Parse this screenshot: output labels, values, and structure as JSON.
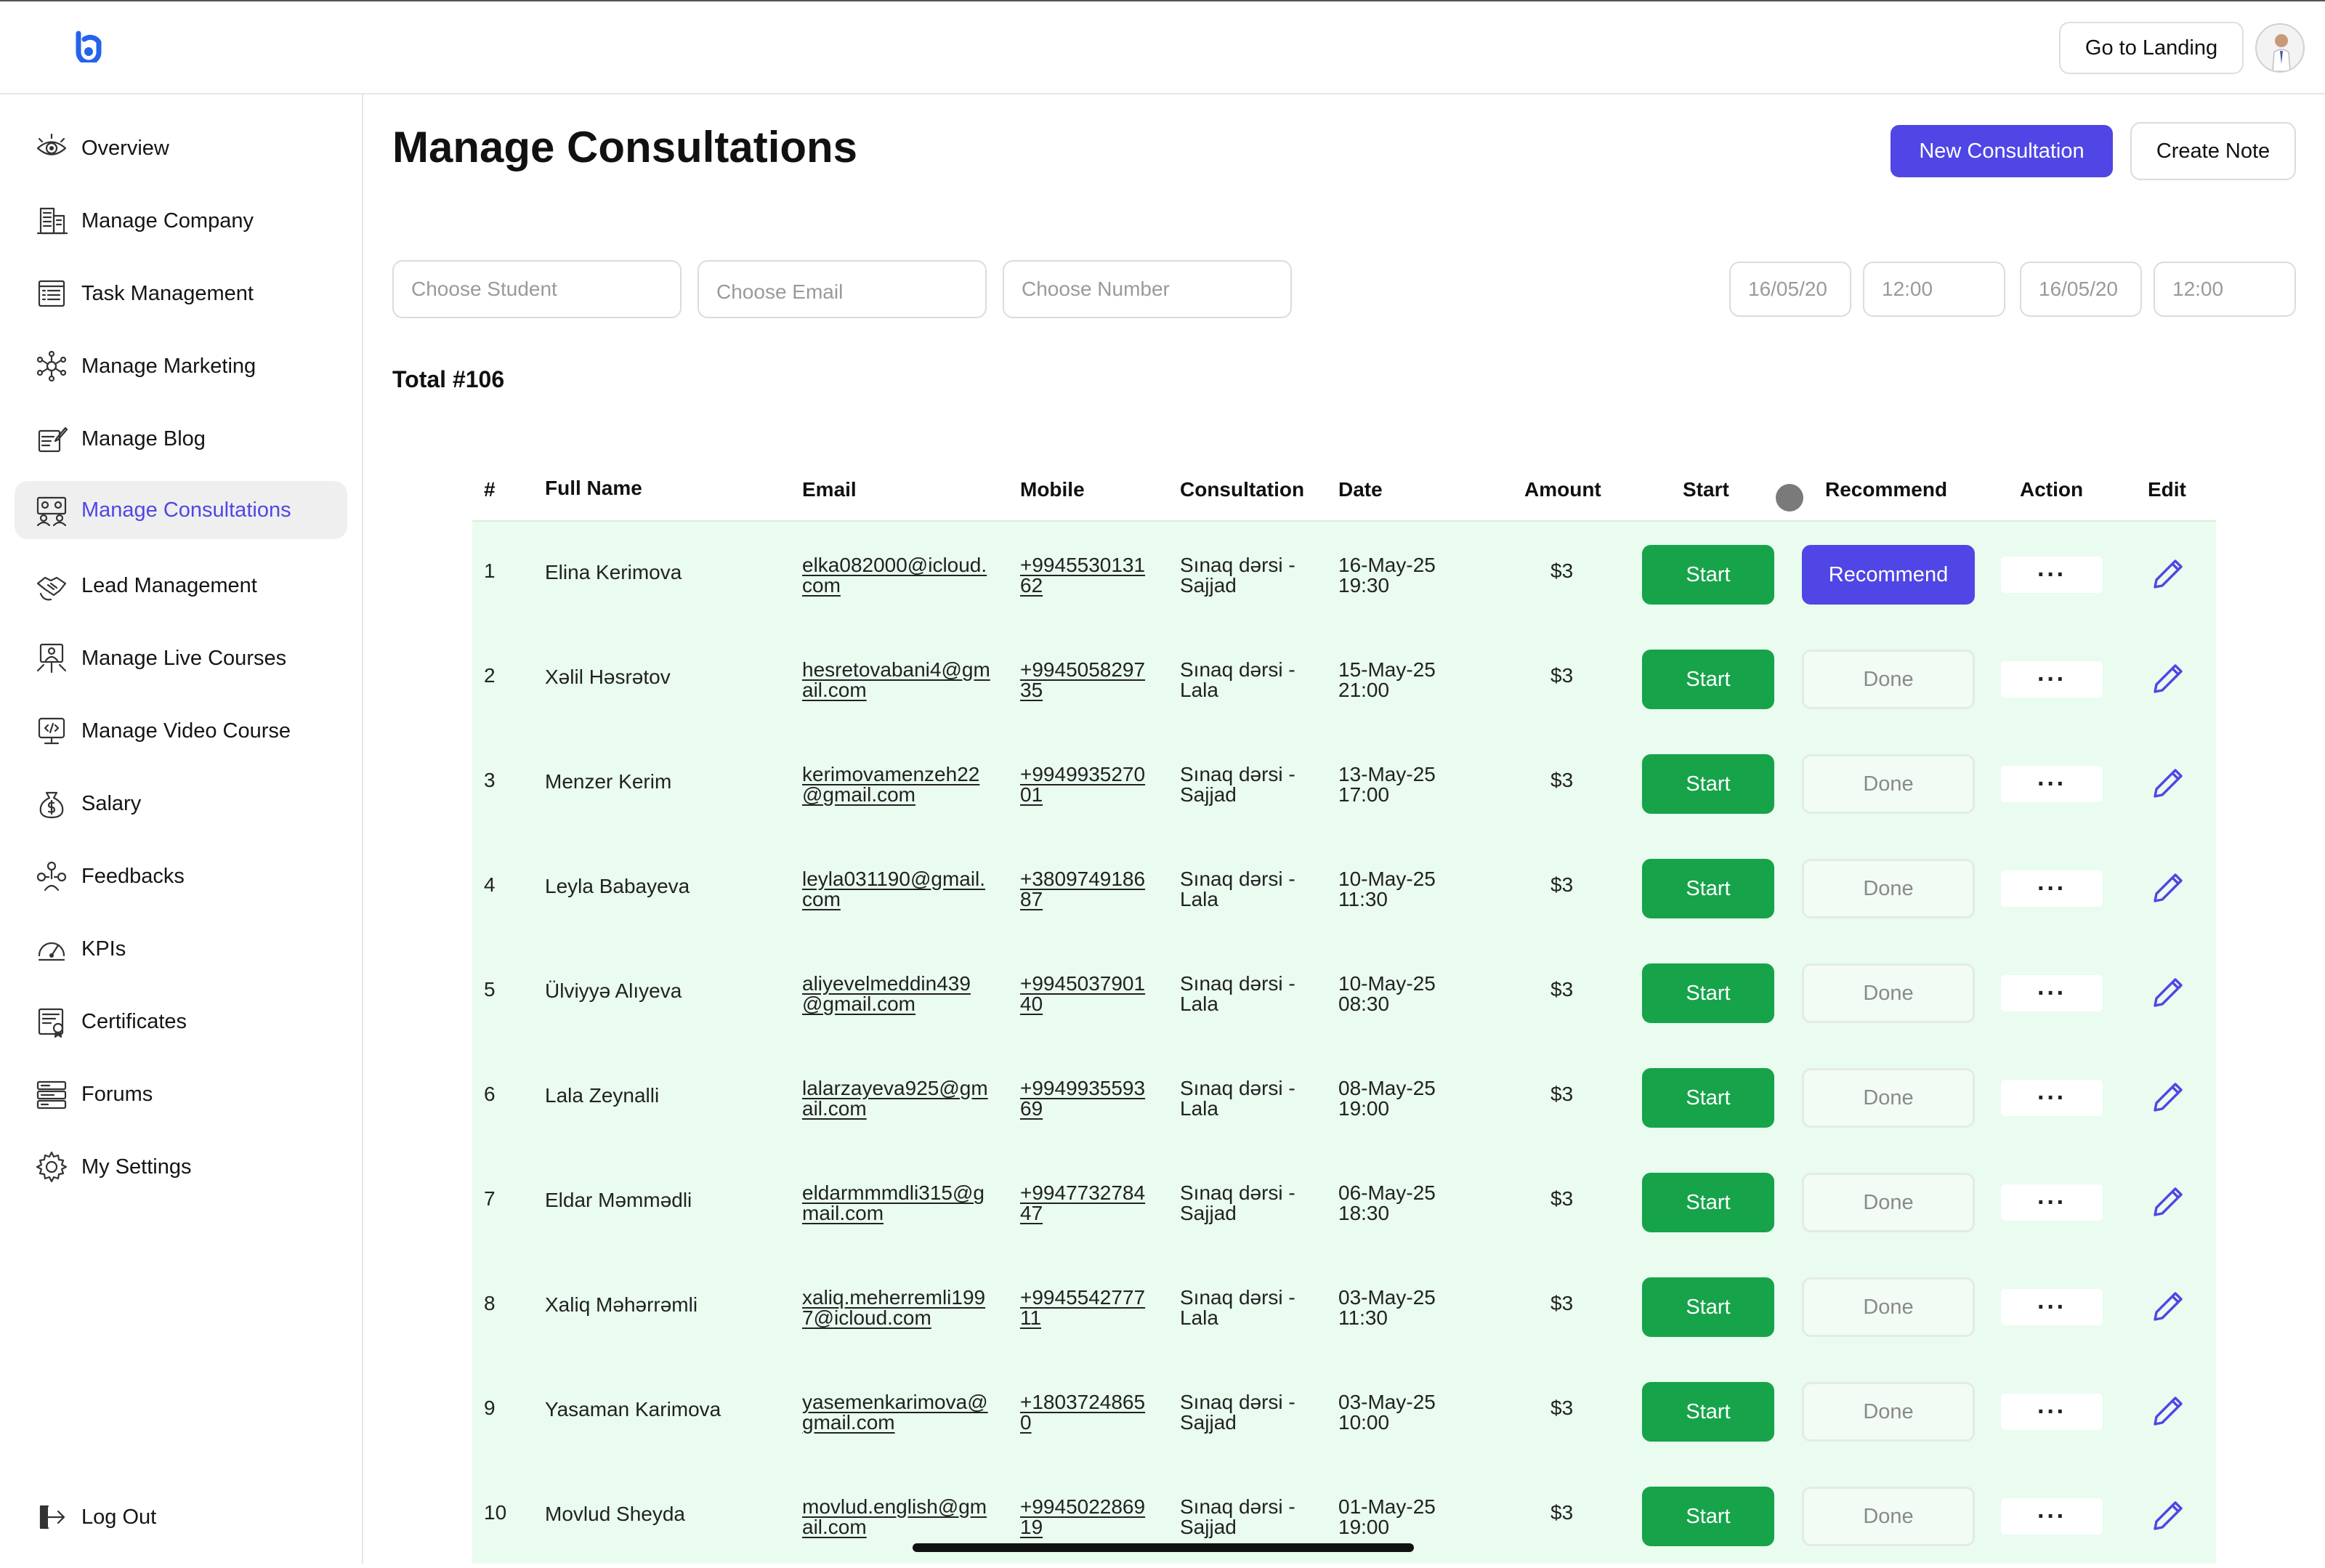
{
  "header": {
    "landing_label": "Go to Landing"
  },
  "sidebar": {
    "items": [
      {
        "label": "Overview",
        "icon": "eye-icon"
      },
      {
        "label": "Manage Company",
        "icon": "building-icon"
      },
      {
        "label": "Task Management",
        "icon": "task-list-icon"
      },
      {
        "label": "Manage Marketing",
        "icon": "network-icon"
      },
      {
        "label": "Manage Blog",
        "icon": "blog-icon"
      },
      {
        "label": "Manage Consultations",
        "icon": "consultation-icon",
        "active": true
      },
      {
        "label": "Lead Management",
        "icon": "handshake-icon"
      },
      {
        "label": "Manage Live Courses",
        "icon": "live-course-icon"
      },
      {
        "label": "Manage Video Course",
        "icon": "video-course-icon"
      },
      {
        "label": "Salary",
        "icon": "money-bag-icon"
      },
      {
        "label": "Feedbacks",
        "icon": "feedback-icon"
      },
      {
        "label": "KPIs",
        "icon": "gauge-icon"
      },
      {
        "label": "Certificates",
        "icon": "certificate-icon"
      },
      {
        "label": "Forums",
        "icon": "forum-icon"
      },
      {
        "label": "My Settings",
        "icon": "gear-icon"
      }
    ],
    "logout_label": "Log Out"
  },
  "main": {
    "title": "Manage Consultations",
    "new_consultation_label": "New Consultation",
    "create_note_label": "Create Note",
    "filters": {
      "student_placeholder": "Choose Student",
      "email_placeholder": "Choose Email",
      "number_placeholder": "Choose Number",
      "date_from": "16/05/20",
      "time_from": "12:00",
      "date_to": "16/05/20",
      "time_to": "12:00"
    },
    "total": "Total #106"
  },
  "table": {
    "columns": {
      "num": "#",
      "name": "Full Name",
      "email": "Email",
      "mobile": "Mobile",
      "consultation": "Consultation",
      "date": "Date",
      "amount": "Amount",
      "start": "Start",
      "recommend": "Recommend",
      "action": "Action",
      "edit": "Edit"
    },
    "rows": [
      {
        "num": "1",
        "name": "Elina Kerimova",
        "email": "elka082000@icloud.com",
        "mobile": "+994553013162",
        "consultation": "Sınaq dərsi - Sajjad",
        "date": "16-May-25 19:30",
        "amount": "$3",
        "start": "Start",
        "recommend": "Recommend",
        "rec_state": "recommend",
        "more": "···"
      },
      {
        "num": "2",
        "name": "Xəlil Həsrətov",
        "email": "hesretovabani4@gmail.com",
        "mobile": "+994505829735",
        "consultation": "Sınaq dərsi - Lala",
        "date": "15-May-25 21:00",
        "amount": "$3",
        "start": "Start",
        "recommend": "Done",
        "rec_state": "done",
        "more": "···"
      },
      {
        "num": "3",
        "name": "Menzer Kerim",
        "email": "kerimovamenzeh22@gmail.com",
        "mobile": "+994993527001",
        "consultation": "Sınaq dərsi - Sajjad",
        "date": "13-May-25 17:00",
        "amount": "$3",
        "start": "Start",
        "recommend": "Done",
        "rec_state": "done",
        "more": "···"
      },
      {
        "num": "4",
        "name": "Leyla Babayeva",
        "email": "leyla031190@gmail.com",
        "mobile": "+380974918687",
        "consultation": "Sınaq dərsi - Lala",
        "date": "10-May-25 11:30",
        "amount": "$3",
        "start": "Start",
        "recommend": "Done",
        "rec_state": "done",
        "more": "···"
      },
      {
        "num": "5",
        "name": "Ülviyyə  Alıyeva",
        "email": "aliyevelmeddin439@gmail.com",
        "mobile": "+994503790140",
        "consultation": "Sınaq dərsi - Lala",
        "date": "10-May-25 08:30",
        "amount": "$3",
        "start": "Start",
        "recommend": "Done",
        "rec_state": "done",
        "more": "···"
      },
      {
        "num": "6",
        "name": "Lala Zeynalli",
        "email": "lalarzayeva925@gmail.com",
        "mobile": "+994993559369",
        "consultation": "Sınaq dərsi - Lala",
        "date": "08-May-25 19:00",
        "amount": "$3",
        "start": "Start",
        "recommend": "Done",
        "rec_state": "done",
        "more": "···"
      },
      {
        "num": "7",
        "name": "Eldar Məmmədli",
        "email": "eldarmmmdli315@gmail.com",
        "mobile": "+994773278447",
        "consultation": "Sınaq dərsi - Sajjad",
        "date": "06-May-25 18:30",
        "amount": "$3",
        "start": "Start",
        "recommend": "Done",
        "rec_state": "done",
        "more": "···"
      },
      {
        "num": "8",
        "name": "Xaliq Məhərrəmli",
        "email": "xaliq.meherremli1997@icloud.com",
        "mobile": "+994554277711",
        "consultation": "Sınaq dərsi - Lala",
        "date": "03-May-25 11:30",
        "amount": "$3",
        "start": "Start",
        "recommend": "Done",
        "rec_state": "done",
        "more": "···"
      },
      {
        "num": "9",
        "name": "Yasaman Karimova",
        "email": "yasemenkarimova@gmail.com",
        "mobile": "+18037248650",
        "consultation": "Sınaq dərsi - Sajjad",
        "date": "03-May-25 10:00",
        "amount": "$3",
        "start": "Start",
        "recommend": "Done",
        "rec_state": "done",
        "more": "···"
      },
      {
        "num": "10",
        "name": "Movlud Sheyda",
        "email": "movlud.english@gmail.com",
        "mobile": "+994502286919",
        "consultation": "Sınaq dərsi - Sajjad",
        "date": "01-May-25 19:00",
        "amount": "$3",
        "start": "Start",
        "recommend": "Done",
        "rec_state": "done",
        "more": "···"
      }
    ]
  },
  "colors": {
    "accent": "#4f46e5",
    "start_green": "#16a34a",
    "table_bg": "#e9fcef"
  }
}
